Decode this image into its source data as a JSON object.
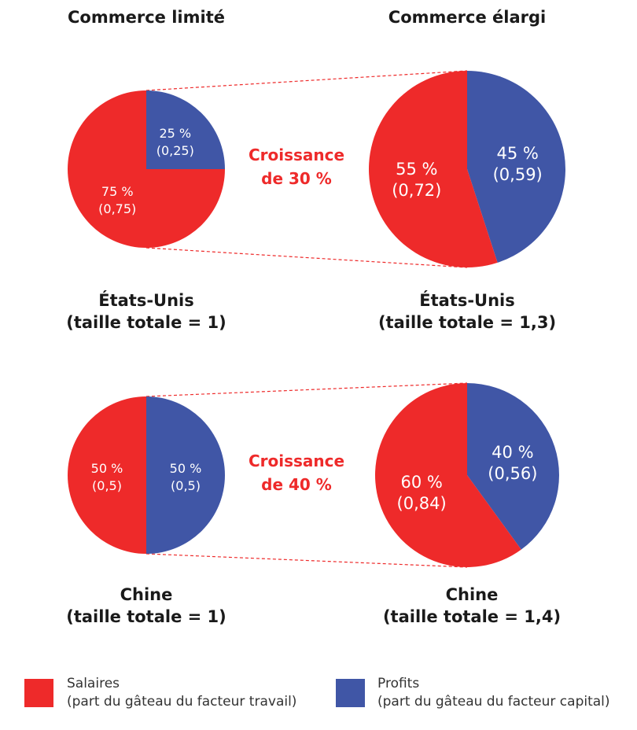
{
  "colors": {
    "salaires": "#ee2a2a",
    "profits": "#4056a6"
  },
  "chart_data": [
    {
      "type": "pie",
      "column": "Commerce limité",
      "country": "États-Unis",
      "size_label": "(taille totale = 1)",
      "total": 1,
      "slices": [
        {
          "series": "Profits",
          "pct": "25 %",
          "value": "(0,25)",
          "share": 25
        },
        {
          "series": "Salaires",
          "pct": "75 %",
          "value": "(0,75)",
          "share": 75
        }
      ]
    },
    {
      "type": "pie",
      "column": "Commerce élargi",
      "country": "États-Unis",
      "size_label": "(taille totale = 1,3)",
      "total": 1.3,
      "slices": [
        {
          "series": "Profits",
          "pct": "45 %",
          "value": "(0,59)",
          "share": 45
        },
        {
          "series": "Salaires",
          "pct": "55 %",
          "value": "(0,72)",
          "share": 55
        }
      ]
    },
    {
      "type": "pie",
      "column": "Commerce limité",
      "country": "Chine",
      "size_label": "(taille totale = 1)",
      "total": 1,
      "slices": [
        {
          "series": "Profits",
          "pct": "50 %",
          "value": "(0,5)",
          "share": 50
        },
        {
          "series": "Salaires",
          "pct": "50 %",
          "value": "(0,5)",
          "share": 50
        }
      ]
    },
    {
      "type": "pie",
      "column": "Commerce élargi",
      "country": "Chine",
      "size_label": "(taille totale = 1,4)",
      "total": 1.4,
      "slices": [
        {
          "series": "Profits",
          "pct": "40 %",
          "value": "(0,56)",
          "share": 40
        },
        {
          "series": "Salaires",
          "pct": "60 %",
          "value": "(0,84)",
          "share": 60
        }
      ]
    }
  ],
  "headers": {
    "left": "Commerce limité",
    "right": "Commerce élargi"
  },
  "growth": [
    {
      "line1": "Croissance",
      "line2": "de 30 %"
    },
    {
      "line1": "Croissance",
      "line2": "de 40 %"
    }
  ],
  "legend": [
    {
      "name": "Salaires",
      "desc": "(part du gâteau du facteur travail)"
    },
    {
      "name": "Profits",
      "desc": "(part du gâteau du facteur capital)"
    }
  ]
}
